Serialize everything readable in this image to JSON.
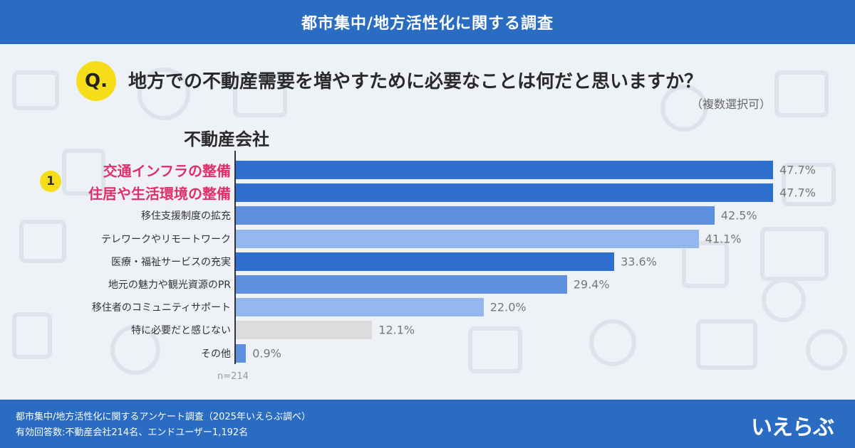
{
  "header": {
    "title": "都市集中/地方活性化に関する調査"
  },
  "question": {
    "badge": "Q.",
    "text": "地方での不動産需要を増やすために必要なことは何だと思いますか？",
    "note": "（複数選択可）"
  },
  "segment": "不動産会社",
  "rank_badge": "1",
  "sample_size": "n=214",
  "chart_data": {
    "type": "bar",
    "orientation": "horizontal",
    "categories": [
      "交通インフラの整備",
      "住居や生活環境の整備",
      "移住支援制度の拡充",
      "テレワークやリモートワーク",
      "医療・福祉サービスの充実",
      "地元の魅力や観光資源のPR",
      "移住者のコミュニティサポート",
      "特に必要だと感じない",
      "その他"
    ],
    "values": [
      47.7,
      47.7,
      42.5,
      41.1,
      33.6,
      29.4,
      22.0,
      12.1,
      0.9
    ],
    "value_labels": [
      "47.7%",
      "47.7%",
      "42.5%",
      "41.1%",
      "33.6%",
      "29.4%",
      "22.0%",
      "12.1%",
      "0.9%"
    ],
    "colors": [
      "#2f6fcf",
      "#2f6fcf",
      "#5d91e0",
      "#94b8ee",
      "#2f6fcf",
      "#5d91e0",
      "#94b8ee",
      "#dcdcdc",
      "#5d91e0"
    ],
    "xlim": [
      0,
      47.7
    ],
    "grid": false,
    "legend": "none"
  },
  "footer": {
    "source": "都市集中/地方活性化に関するアンケート調査（2025年いえらぶ調べ）",
    "respondents": "有効回答数:不動産会社214名、エンドユーザー1,192名",
    "logo": "いえらぶ"
  }
}
